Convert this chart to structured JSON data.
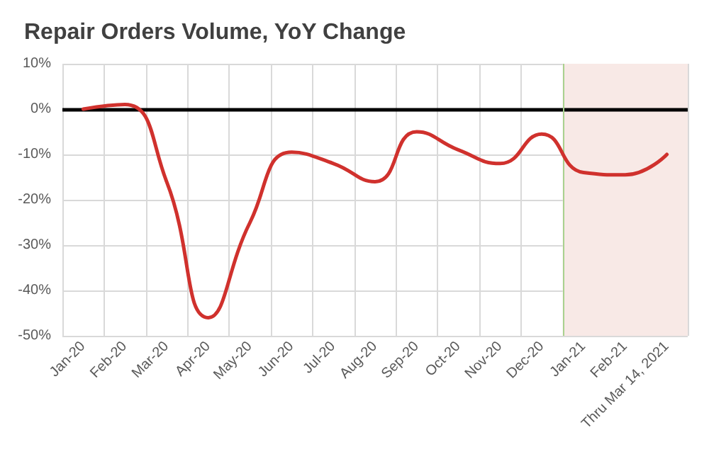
{
  "chart_data": {
    "type": "line",
    "title": "Repair Orders Volume, YoY Change",
    "categories": [
      "Jan-20",
      "Feb-20",
      "Mar-20",
      "Apr-20",
      "May-20",
      "Jun-20",
      "Jul-20",
      "Aug-20",
      "Sep-20",
      "Oct-20",
      "Nov-20",
      "Dec-20",
      "Jan-21",
      "Feb-21",
      "Thru Mar 14, 2021"
    ],
    "series": [
      {
        "color": "#d0312d",
        "values": [
          0,
          1,
          -16,
          -46,
          -25,
          -9.5,
          -12,
          -16,
          -5,
          -9,
          -12,
          -5.5,
          -14,
          -14.5,
          -10
        ]
      }
    ],
    "ylim": [
      -50,
      10
    ],
    "yticks": [
      {
        "value": -50,
        "label": "-50%"
      },
      {
        "value": -40,
        "label": "-40%"
      },
      {
        "value": -30,
        "label": "-30%"
      },
      {
        "value": -20,
        "label": "-20%"
      },
      {
        "value": -10,
        "label": "-10%"
      },
      {
        "value": 0,
        "label": "0%"
      },
      {
        "value": 10,
        "label": "10%"
      }
    ],
    "ref_lines": [
      {
        "axis": "y",
        "value": 0,
        "color": "#000000"
      },
      {
        "axis": "x",
        "value": "Jan-21",
        "color": "#a9d18e"
      }
    ],
    "bands": [
      {
        "axis": "x",
        "from": "Jan-21",
        "to": "Thru Mar 14, 2021",
        "color": "#f8e9e6"
      }
    ],
    "grid": true,
    "marker": "none",
    "line_style": "solid"
  }
}
